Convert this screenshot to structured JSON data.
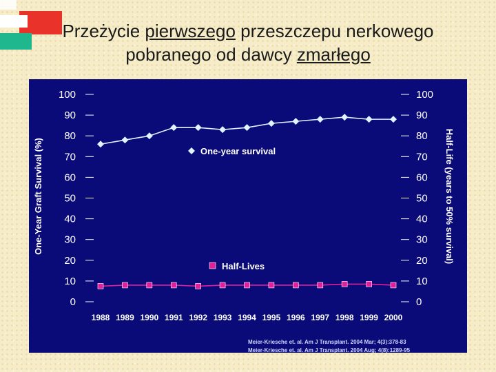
{
  "title": {
    "line1": [
      {
        "text": "Przeżycie ",
        "underline": false
      },
      {
        "text": "pierwszego",
        "underline": true
      },
      {
        "text": " przeszczepu nerkowego",
        "underline": false
      }
    ],
    "line2": [
      {
        "text": "pobranego od dawcy ",
        "underline": false
      },
      {
        "text": "zmarłego",
        "underline": true
      }
    ]
  },
  "colors": {
    "panel": "#0a0a78",
    "survival_series": "#dff4ff",
    "halflife_series": "#e0209c",
    "axis_text": "#ffffff",
    "citation": "#cfd6ff"
  },
  "chart_data": {
    "type": "line",
    "x": [
      "1988",
      "1989",
      "1990",
      "1991",
      "1992",
      "1993",
      "1994",
      "1995",
      "1996",
      "1997",
      "1998",
      "1999",
      "2000"
    ],
    "series": [
      {
        "name": "One-year survival",
        "axis": "left",
        "marker": "diamond",
        "values": [
          76,
          78,
          80,
          84,
          84,
          83,
          84,
          86,
          87,
          88,
          89,
          88,
          88
        ]
      },
      {
        "name": "Half-Lives",
        "axis": "right",
        "marker": "square",
        "values": [
          7.5,
          8,
          8,
          8,
          7.5,
          8,
          8,
          8,
          8,
          8,
          8.5,
          8.5,
          8
        ]
      }
    ],
    "ylabel": "One-Year Graft Survival (%)",
    "y2label": "Half-Life (years to 50% survival)",
    "ylim": [
      0,
      100
    ],
    "y2lim": [
      0,
      100
    ],
    "yticks": [
      "0",
      "10",
      "20",
      "30",
      "40",
      "50",
      "60",
      "70",
      "80",
      "90",
      "100"
    ],
    "grid": false,
    "legend_placement": "inline"
  },
  "citations": [
    "Meier-Kriesche et. al.  Am J Transplant. 2004 Mar; 4(3):378-83",
    "Meier-Kriesche et. al.  Am J Transplant. 2004 Aug; 4(8):1289-95"
  ]
}
